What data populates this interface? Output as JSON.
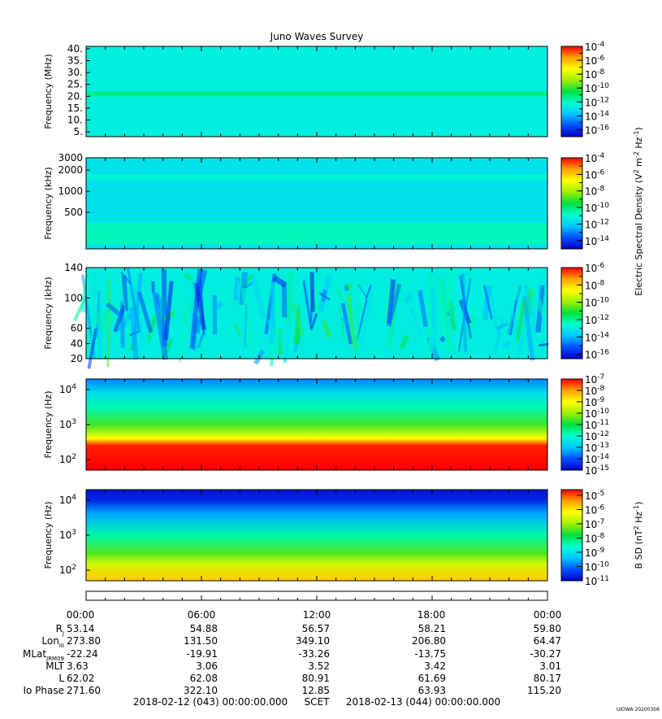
{
  "title": "Juno Waves Survey",
  "colors": {
    "spec_stops": [
      "#0000c8",
      "#0050ff",
      "#00c8ff",
      "#00ffd0",
      "#00e040",
      "#a0f000",
      "#ffff00",
      "#ffa000",
      "#ff0000"
    ]
  },
  "chart_data": [
    {
      "type": "heatmap",
      "panel": "HFR high",
      "ylabel": "Frequency (MHz)",
      "yticks": [
        "40.",
        "35.",
        "30.",
        "25.",
        "20.",
        "15.",
        "10.",
        "5."
      ],
      "yrange": [
        3,
        41
      ],
      "colorbar_ticks": [
        "-4",
        "-6",
        "-8",
        "-10",
        "-12",
        "-14",
        "-16"
      ],
      "colorbar_range_log10": [
        -17,
        -4
      ],
      "background_log10": -12.6,
      "features": [
        {
          "kind": "horizontal band",
          "freq": 21,
          "log10": -11.2
        }
      ]
    },
    {
      "type": "heatmap",
      "panel": "HFR low",
      "ylabel": "Frequency (kHz)",
      "yticks": [
        "3000",
        "2000",
        "1000",
        "500"
      ],
      "yrange": [
        150,
        3000
      ],
      "colorbar_ticks": [
        "-4",
        "-6",
        "-8",
        "-10",
        "-12",
        "-14"
      ],
      "colorbar_range_log10": [
        -15,
        -4
      ],
      "background_log10": -11.6,
      "features": [
        {
          "kind": "horizontal band",
          "freq": 1600,
          "log10": -11.0
        },
        {
          "kind": "low-frequency band",
          "freq": 250,
          "log10": -10.6
        }
      ]
    },
    {
      "type": "heatmap",
      "panel": "LFR high",
      "ylabel": "Frequency (kHz)",
      "yticks": [
        "140",
        "100",
        "60",
        "40",
        "20"
      ],
      "yrange": [
        20,
        140
      ],
      "colorbar_ticks": [
        "-6",
        "-8",
        "-10",
        "-12",
        "-14",
        "-16"
      ],
      "colorbar_range_log10": [
        -16.5,
        -6
      ],
      "background_log10": -13.0
    },
    {
      "type": "heatmap",
      "panel": "LFR low",
      "ylabel": "Frequency (Hz)",
      "yticks": [
        "4",
        "3",
        "2"
      ],
      "yrange": [
        50,
        20000
      ],
      "colorbar_ticks": [
        "-7",
        "-8",
        "-9",
        "-10",
        "-11",
        "-12",
        "-13",
        "-14",
        "-15"
      ],
      "colorbar_range_log10": [
        -15,
        -7
      ],
      "profile_log10_at_freq": [
        [
          60,
          -7.0
        ],
        [
          250,
          -7.2
        ],
        [
          400,
          -9.0
        ],
        [
          1000,
          -10.6
        ],
        [
          3000,
          -11.8
        ],
        [
          8000,
          -12.6
        ],
        [
          20000,
          -13.6
        ]
      ]
    },
    {
      "type": "heatmap",
      "panel": "Magnetic",
      "ylabel": "Frequency (Hz)",
      "yticks": [
        "4",
        "3",
        "2"
      ],
      "yrange": [
        50,
        20000
      ],
      "colorbar_ticks": [
        "-5",
        "-6",
        "-7",
        "-8",
        "-9",
        "-10",
        "-11"
      ],
      "colorbar_range_log10": [
        -11,
        -4.6
      ],
      "profile_log10_at_freq": [
        [
          60,
          -5.8
        ],
        [
          150,
          -6.6
        ],
        [
          300,
          -7.4
        ],
        [
          1000,
          -8.4
        ],
        [
          4000,
          -9.6
        ],
        [
          10000,
          -10.6
        ],
        [
          20000,
          -10.8
        ]
      ]
    }
  ],
  "colorbar_labels": {
    "electric": "Electric Spectral Density (V",
    "electric_sup1": "2",
    "electric_mid": " m",
    "electric_sup2": "-2",
    "electric_hz": " Hz",
    "electric_sup3": "-1",
    "electric_end": ")",
    "magnetic": "B SD (nT",
    "magnetic_sup1": "2",
    "magnetic_hz": " Hz",
    "magnetic_sup2": "-1",
    "magnetic_end": ")"
  },
  "ephemeris": {
    "times": [
      "00:00",
      "06:00",
      "12:00",
      "18:00",
      "00:00"
    ],
    "rows": [
      {
        "label": "R",
        "sub": "J",
        "values": [
          "53.14",
          "54.88",
          "56.57",
          "58.21",
          "59.80"
        ]
      },
      {
        "label": "Lon",
        "sub": "III",
        "values": [
          "273.80",
          "131.50",
          "349.10",
          "206.80",
          "64.47"
        ]
      },
      {
        "label": "MLat",
        "sub": "JRM09",
        "values": [
          "-22.24",
          "-19.91",
          "-33.26",
          "-13.75",
          "-30.27"
        ]
      },
      {
        "label": "MLT",
        "sub": "",
        "values": [
          "3.63",
          "3.06",
          "3.52",
          "3.42",
          "3.01"
        ]
      },
      {
        "label": "L",
        "sub": "",
        "values": [
          "62.02",
          "62.08",
          "80.91",
          "61.69",
          "80.17"
        ]
      },
      {
        "label": "Io Phase",
        "sub": "",
        "values": [
          "271.60",
          "322.10",
          "12.85",
          "63.93",
          "115.20"
        ]
      }
    ]
  },
  "footer": {
    "start": "2018-02-12 (043) 00:00:00.000",
    "scet": "SCET",
    "end": "2018-02-13 (044) 00:00:00.000",
    "stamp": "UIOWA 20200306"
  }
}
